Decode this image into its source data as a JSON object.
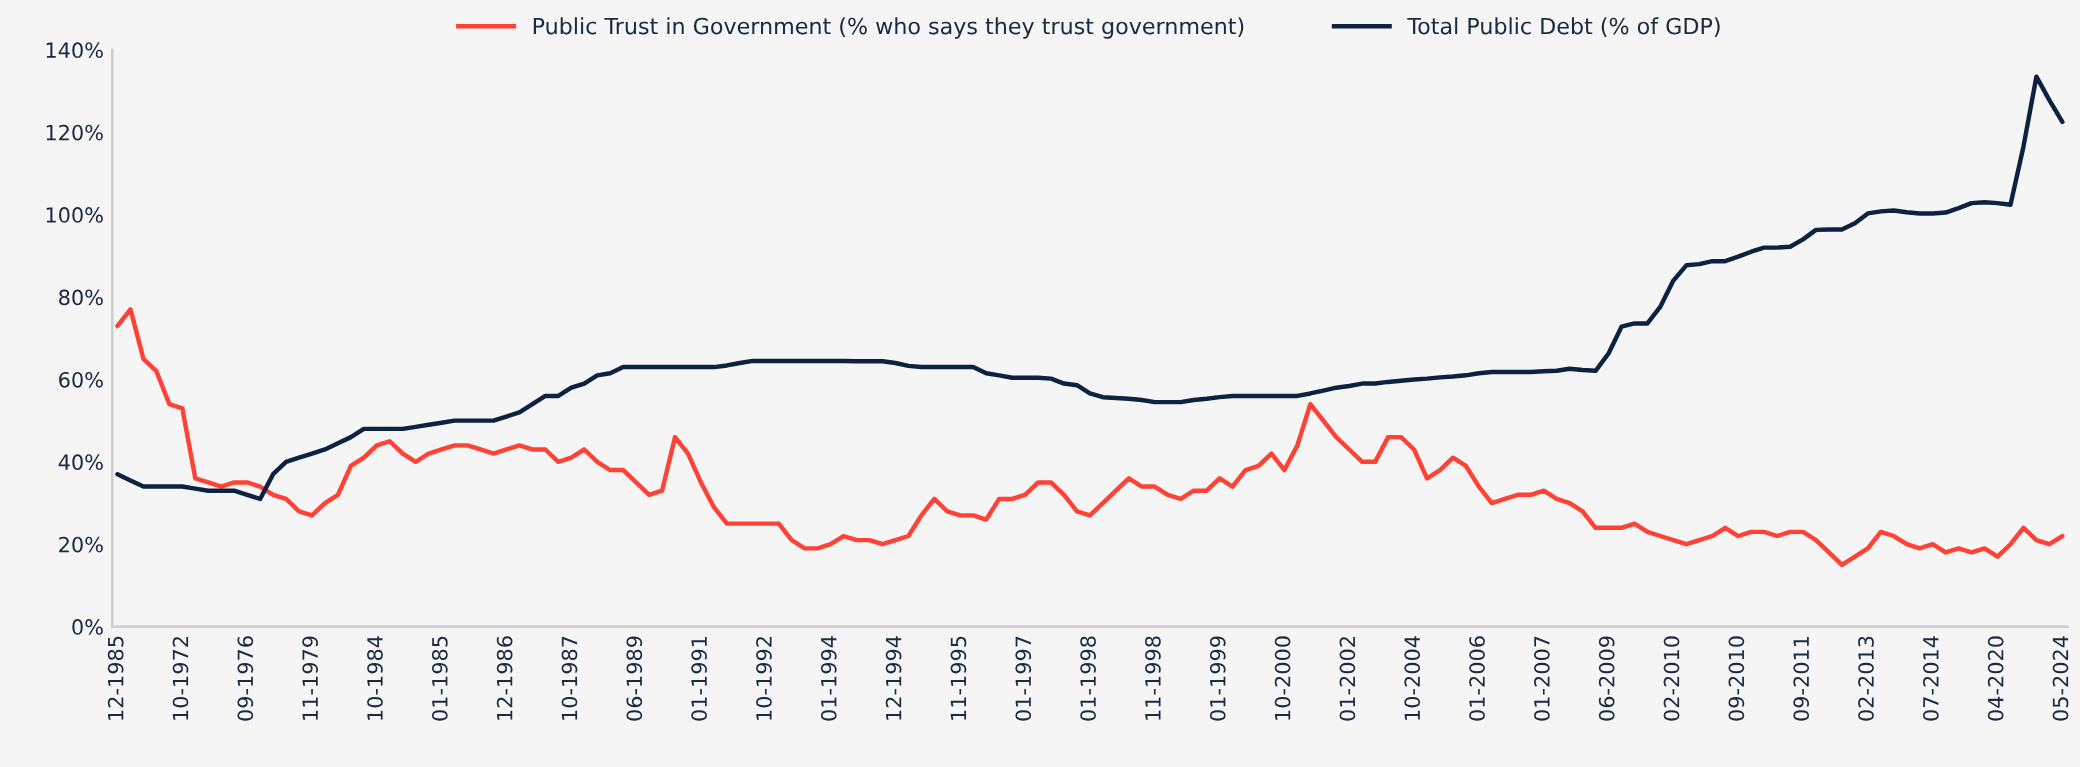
{
  "chart_data": {
    "type": "line",
    "categories": [
      "12-1985",
      null,
      null,
      null,
      null,
      "10-1972",
      null,
      null,
      null,
      null,
      "09-1976",
      null,
      null,
      null,
      null,
      "11-1979",
      null,
      null,
      null,
      null,
      "10-1984",
      null,
      null,
      null,
      null,
      "01-1985",
      null,
      null,
      null,
      null,
      "12-1986",
      null,
      null,
      null,
      null,
      "10-1987",
      null,
      null,
      null,
      null,
      "06-1989",
      null,
      null,
      null,
      null,
      "01-1991",
      null,
      null,
      null,
      null,
      "10-1992",
      null,
      null,
      null,
      null,
      "01-1994",
      null,
      null,
      null,
      null,
      "12-1994",
      null,
      null,
      null,
      null,
      "11-1995",
      null,
      null,
      null,
      null,
      "01-1997",
      null,
      null,
      null,
      null,
      "01-1998",
      null,
      null,
      null,
      null,
      "11-1998",
      null,
      null,
      null,
      null,
      "01-1999",
      null,
      null,
      null,
      null,
      "10-2000",
      null,
      null,
      null,
      null,
      "01-2002",
      null,
      null,
      null,
      null,
      "10-2004",
      null,
      null,
      null,
      null,
      "01-2006",
      null,
      null,
      null,
      null,
      "01-2007",
      null,
      null,
      null,
      null,
      "06-2009",
      null,
      null,
      null,
      null,
      "02-2010",
      null,
      null,
      null,
      null,
      "09-2010",
      null,
      null,
      null,
      null,
      "09-2011",
      null,
      null,
      null,
      null,
      "02-2013",
      null,
      null,
      null,
      null,
      "07-2014",
      null,
      null,
      null,
      null,
      "04-2020",
      null,
      null,
      null,
      null,
      "05-2024"
    ],
    "series": [
      {
        "name": "Public Trust in Government (% who says they trust government)",
        "color": "#ff4136",
        "values": [
          73,
          77,
          65,
          62,
          54,
          53,
          36,
          35,
          34,
          35,
          35,
          34,
          32,
          31,
          28,
          27,
          30,
          32,
          39,
          41,
          44,
          45,
          42,
          40,
          42,
          43,
          44,
          44,
          43,
          42,
          43,
          44,
          43,
          43,
          40,
          41,
          43,
          40,
          38,
          38,
          35,
          32,
          33,
          46,
          42,
          35,
          29,
          25,
          25,
          25,
          25,
          25,
          21,
          19,
          19,
          20,
          22,
          21,
          21,
          20,
          21,
          22,
          27,
          31,
          28,
          27,
          27,
          26,
          31,
          31,
          32,
          35,
          35,
          32,
          28,
          27,
          30,
          33,
          36,
          34,
          34,
          32,
          31,
          33,
          33,
          36,
          34,
          38,
          39,
          42,
          38,
          44,
          54,
          50,
          46,
          43,
          40,
          40,
          46,
          46,
          43,
          36,
          38,
          41,
          39,
          34,
          30,
          31,
          32,
          32,
          33,
          31,
          30,
          28,
          24,
          24,
          24,
          25,
          23,
          22,
          21,
          20,
          21,
          22,
          24,
          22,
          23,
          23,
          22,
          23,
          23,
          21,
          18,
          15,
          17,
          19,
          23,
          22,
          20,
          19,
          20,
          18,
          19,
          18,
          19,
          17,
          20,
          24,
          21,
          20,
          22
        ]
      },
      {
        "name": "Total Public Debt (% of GDP)",
        "color": "#0d2240",
        "values": [
          37,
          35.5,
          34,
          34,
          34,
          34,
          33.5,
          33,
          33,
          33,
          32,
          31,
          37,
          40,
          41,
          42,
          43,
          44.5,
          46,
          48,
          48,
          48,
          48,
          48.5,
          49,
          49.5,
          50,
          50,
          50,
          50,
          51,
          52,
          54,
          56,
          56,
          58,
          59,
          61,
          61.5,
          63,
          63,
          63,
          63,
          63,
          63,
          63,
          63,
          63.4,
          64,
          64.5,
          64.5,
          64.5,
          64.5,
          64.5,
          64.5,
          64.5,
          64.5,
          64.4,
          64.4,
          64.4,
          64,
          63.3,
          63,
          63,
          63,
          63,
          63,
          61.5,
          61,
          60.4,
          60.4,
          60.4,
          60.2,
          59,
          58.6,
          56.6,
          55.7,
          55.5,
          55.3,
          55,
          54.5,
          54.5,
          54.5,
          55,
          55.3,
          55.7,
          56,
          56,
          56,
          56,
          56,
          56,
          56.6,
          57.3,
          58,
          58.4,
          59,
          59,
          59.4,
          59.7,
          60,
          60.2,
          60.5,
          60.7,
          61,
          61.5,
          61.8,
          61.8,
          61.8,
          61.8,
          62,
          62.1,
          62.6,
          62.3,
          62.1,
          66.3,
          72.8,
          73.6,
          73.6,
          77.7,
          84,
          87.7,
          88,
          88.7,
          88.7,
          89.8,
          91,
          92,
          92,
          92.2,
          94,
          96.3,
          96.4,
          96.4,
          97.9,
          100.3,
          100.8,
          101,
          100.6,
          100.3,
          100.3,
          100.5,
          101.6,
          102.8,
          103,
          102.8,
          102.4,
          116.5,
          133.5,
          127.8,
          122.5
        ]
      }
    ],
    "ylim": [
      0,
      140
    ],
    "yticks": [
      {
        "value": 0,
        "label": "0%"
      },
      {
        "value": 20,
        "label": "20%"
      },
      {
        "value": 40,
        "label": "40%"
      },
      {
        "value": 60,
        "label": "60%"
      },
      {
        "value": 80,
        "label": "80%"
      },
      {
        "value": 100,
        "label": "100%"
      },
      {
        "value": 120,
        "label": "120%"
      },
      {
        "value": 140,
        "label": "140%"
      }
    ],
    "legend": "top",
    "grid": false,
    "marker": "none",
    "line_style": "solid"
  }
}
